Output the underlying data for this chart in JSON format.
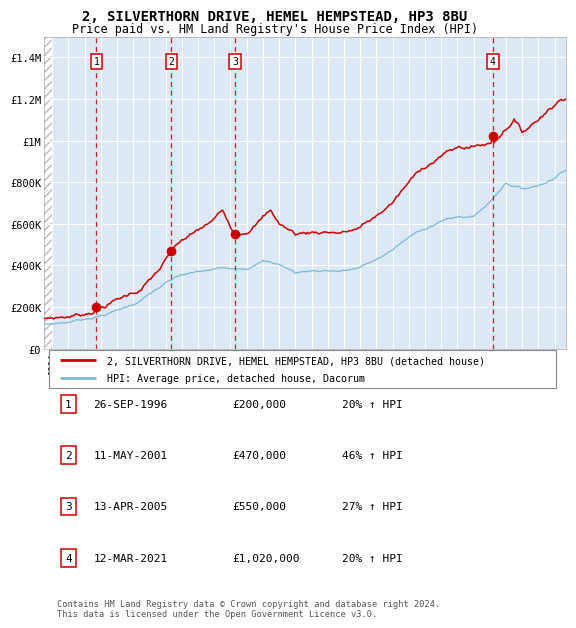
{
  "title": "2, SILVERTHORN DRIVE, HEMEL HEMPSTEAD, HP3 8BU",
  "subtitle": "Price paid vs. HM Land Registry's House Price Index (HPI)",
  "title_fontsize": 10,
  "subtitle_fontsize": 8.5,
  "plot_bg_color": "#dce9f5",
  "red_color": "#cc0000",
  "blue_color": "#7ab8d9",
  "sale_dates_num": [
    1996.73,
    2001.36,
    2005.28,
    2021.19
  ],
  "sale_prices": [
    200000,
    470000,
    550000,
    1020000
  ],
  "sale_labels": [
    "1",
    "2",
    "3",
    "4"
  ],
  "ylim": [
    0,
    1500000
  ],
  "yticks": [
    0,
    200000,
    400000,
    600000,
    800000,
    1000000,
    1200000,
    1400000
  ],
  "ytick_labels": [
    "£0",
    "£200K",
    "£400K",
    "£600K",
    "£800K",
    "£1M",
    "£1.2M",
    "£1.4M"
  ],
  "xlim_start": 1993.5,
  "xlim_end": 2025.7,
  "hpi_anchors_x": [
    1993.5,
    1994.0,
    1995.0,
    1996.0,
    1997.0,
    1998.0,
    1999.0,
    2000.0,
    2001.0,
    2002.0,
    2003.0,
    2004.0,
    2005.0,
    2006.0,
    2007.0,
    2008.0,
    2009.0,
    2010.0,
    2011.0,
    2012.0,
    2013.0,
    2014.0,
    2015.0,
    2016.0,
    2017.0,
    2018.0,
    2019.0,
    2020.0,
    2021.0,
    2022.0,
    2023.0,
    2024.0,
    2025.0,
    2025.7
  ],
  "hpi_anchors_y": [
    115000,
    118000,
    128000,
    145000,
    165000,
    190000,
    220000,
    270000,
    320000,
    355000,
    365000,
    375000,
    385000,
    395000,
    430000,
    415000,
    375000,
    385000,
    390000,
    390000,
    405000,
    440000,
    490000,
    545000,
    590000,
    630000,
    645000,
    650000,
    720000,
    820000,
    790000,
    810000,
    850000,
    900000
  ],
  "prop_anchors_x": [
    1993.5,
    1994.0,
    1995.0,
    1996.0,
    1996.73,
    1997.5,
    1998.5,
    1999.5,
    2000.5,
    2001.36,
    2002.0,
    2003.0,
    2004.0,
    2004.5,
    2005.28,
    2006.0,
    2007.0,
    2007.5,
    2008.0,
    2009.0,
    2010.0,
    2011.0,
    2012.0,
    2013.0,
    2014.0,
    2015.0,
    2016.0,
    2017.0,
    2018.0,
    2019.0,
    2020.0,
    2021.19,
    2022.0,
    2022.5,
    2023.0,
    2023.5,
    2024.0,
    2024.5,
    2025.0,
    2025.7
  ],
  "prop_anchors_y": [
    140000,
    145000,
    155000,
    170000,
    200000,
    230000,
    265000,
    305000,
    385000,
    470000,
    520000,
    560000,
    610000,
    650000,
    550000,
    580000,
    650000,
    680000,
    620000,
    570000,
    580000,
    590000,
    590000,
    610000,
    660000,
    730000,
    820000,
    900000,
    960000,
    990000,
    1000000,
    1020000,
    1100000,
    1150000,
    1080000,
    1120000,
    1150000,
    1200000,
    1230000,
    1280000
  ],
  "footer_text": "Contains HM Land Registry data © Crown copyright and database right 2024.\nThis data is licensed under the Open Government Licence v3.0.",
  "table_data": [
    [
      "1",
      "26-SEP-1996",
      "£200,000",
      "20% ↑ HPI"
    ],
    [
      "2",
      "11-MAY-2001",
      "£470,000",
      "46% ↑ HPI"
    ],
    [
      "3",
      "13-APR-2005",
      "£550,000",
      "27% ↑ HPI"
    ],
    [
      "4",
      "12-MAR-2021",
      "£1,020,000",
      "20% ↑ HPI"
    ]
  ],
  "legend1": "2, SILVERTHORN DRIVE, HEMEL HEMPSTEAD, HP3 8BU (detached house)",
  "legend2": "HPI: Average price, detached house, Dacorum"
}
